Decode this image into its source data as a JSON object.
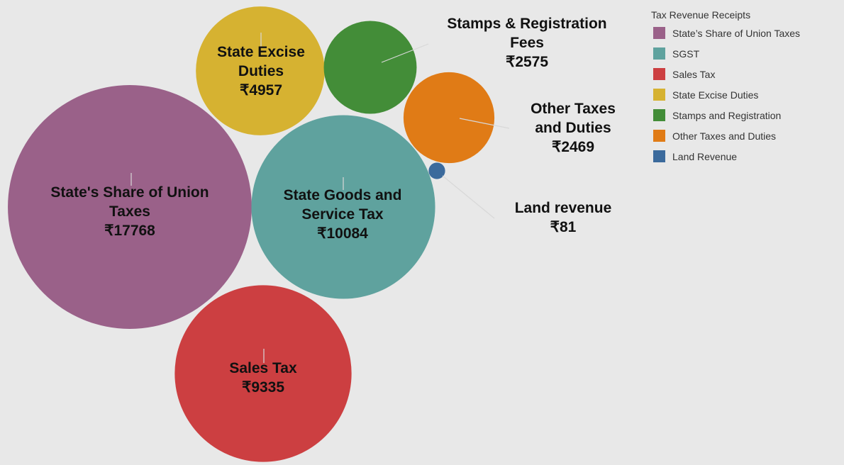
{
  "chart_data": {
    "type": "bubble",
    "legend_title": "Tax Revenue Receipts",
    "categories": [
      "State’s Share of Union Taxes",
      "SGST",
      "Sales Tax",
      "State Excise Duties",
      "Stamps and Registration",
      "Other Taxes and Duties",
      "Land Revenue"
    ],
    "labels": [
      "State's Share of Union Taxes",
      "State Goods and Service Tax",
      "Sales Tax",
      "State Excise Duties",
      "Stamps & Registration Fees",
      "Other Taxes and Duties",
      "Land revenue"
    ],
    "values": [
      17768,
      10084,
      9335,
      4957,
      2575,
      2469,
      81
    ],
    "value_labels": [
      "₹17768",
      "₹10084",
      "₹9335",
      "₹4957",
      "₹2575",
      "₹2469",
      "₹81"
    ],
    "colors": [
      "#9a6189",
      "#5fa29e",
      "#cc3f41",
      "#d6b231",
      "#438d38",
      "#e07b16",
      "#3b6a9c"
    ]
  }
}
